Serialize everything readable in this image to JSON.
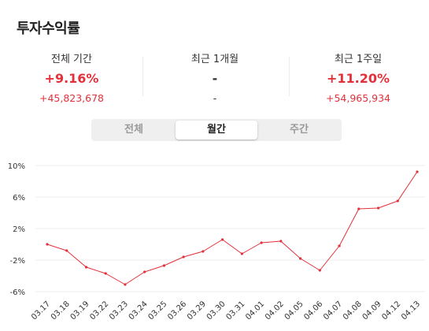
{
  "header": {
    "title": "투자수익률"
  },
  "stats": [
    {
      "label": "전체 기간",
      "pct": "+9.16%",
      "amount": "+45,823,678",
      "tone": "red"
    },
    {
      "label": "최근 1개월",
      "pct": "-",
      "amount": "-",
      "tone": "gray"
    },
    {
      "label": "최근 1주일",
      "pct": "+11.20%",
      "amount": "+54,965,934",
      "tone": "red"
    }
  ],
  "tabs": [
    {
      "label": "전체",
      "active": false
    },
    {
      "label": "월간",
      "active": true
    },
    {
      "label": "주간",
      "active": false
    }
  ],
  "colors": {
    "accent": "#e2313a",
    "line": "#e2313a",
    "grid": "#eeeeee"
  },
  "chart_data": {
    "type": "line",
    "title": "",
    "xlabel": "",
    "ylabel": "",
    "ylim": [
      -6,
      10
    ],
    "yticks": [
      "10%",
      "6%",
      "2%",
      "-2%",
      "-6%"
    ],
    "ytick_values": [
      10,
      6,
      2,
      -2,
      -6
    ],
    "grid": true,
    "categories": [
      "03.17",
      "03.18",
      "03.19",
      "03.22",
      "03.23",
      "03.24",
      "03.25",
      "03.26",
      "03.29",
      "03.30",
      "03.31",
      "04.01",
      "04.02",
      "04.05",
      "04.06",
      "04.07",
      "04.08",
      "04.09",
      "04.12",
      "04.13"
    ],
    "series": [
      {
        "values": [
          0.0,
          -0.8,
          -2.9,
          -3.7,
          -5.1,
          -3.5,
          -2.7,
          -1.6,
          -0.9,
          0.6,
          -1.2,
          0.2,
          0.4,
          -1.8,
          -3.3,
          -0.2,
          4.5,
          4.6,
          5.5,
          9.2
        ]
      }
    ]
  }
}
